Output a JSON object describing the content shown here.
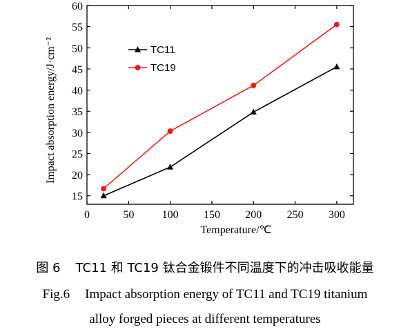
{
  "chart_data": {
    "type": "line",
    "xlabel": "Temperature/℃",
    "ylabel": "Impact absorption energy/J·cm⁻²",
    "xlim": [
      0,
      320
    ],
    "ylim": [
      13,
      60
    ],
    "x_ticks": [
      0,
      50,
      100,
      150,
      200,
      250,
      300
    ],
    "y_ticks": [
      15,
      20,
      25,
      30,
      35,
      40,
      45,
      50,
      55,
      60
    ],
    "grid": false,
    "legend_position": "top-left",
    "series": [
      {
        "name": "TC11",
        "color": "#000000",
        "marker": "triangle",
        "x": [
          20,
          100,
          200,
          300
        ],
        "y": [
          15.0,
          21.8,
          34.8,
          45.5
        ]
      },
      {
        "name": "TC19",
        "color": "#e8201c",
        "marker": "circle",
        "x": [
          20,
          100,
          200,
          300
        ],
        "y": [
          16.7,
          30.3,
          41.1,
          55.5
        ]
      }
    ]
  },
  "captions": {
    "zh_num": "图 6",
    "zh_text": "TC11 和 TC19 钛合金锻件不同温度下的冲击吸收能量",
    "en_num": "Fig.6",
    "en_line1": "Impact absorption energy of TC11 and TC19 titanium",
    "en_line2": "alloy forged pieces at different temperatures"
  }
}
